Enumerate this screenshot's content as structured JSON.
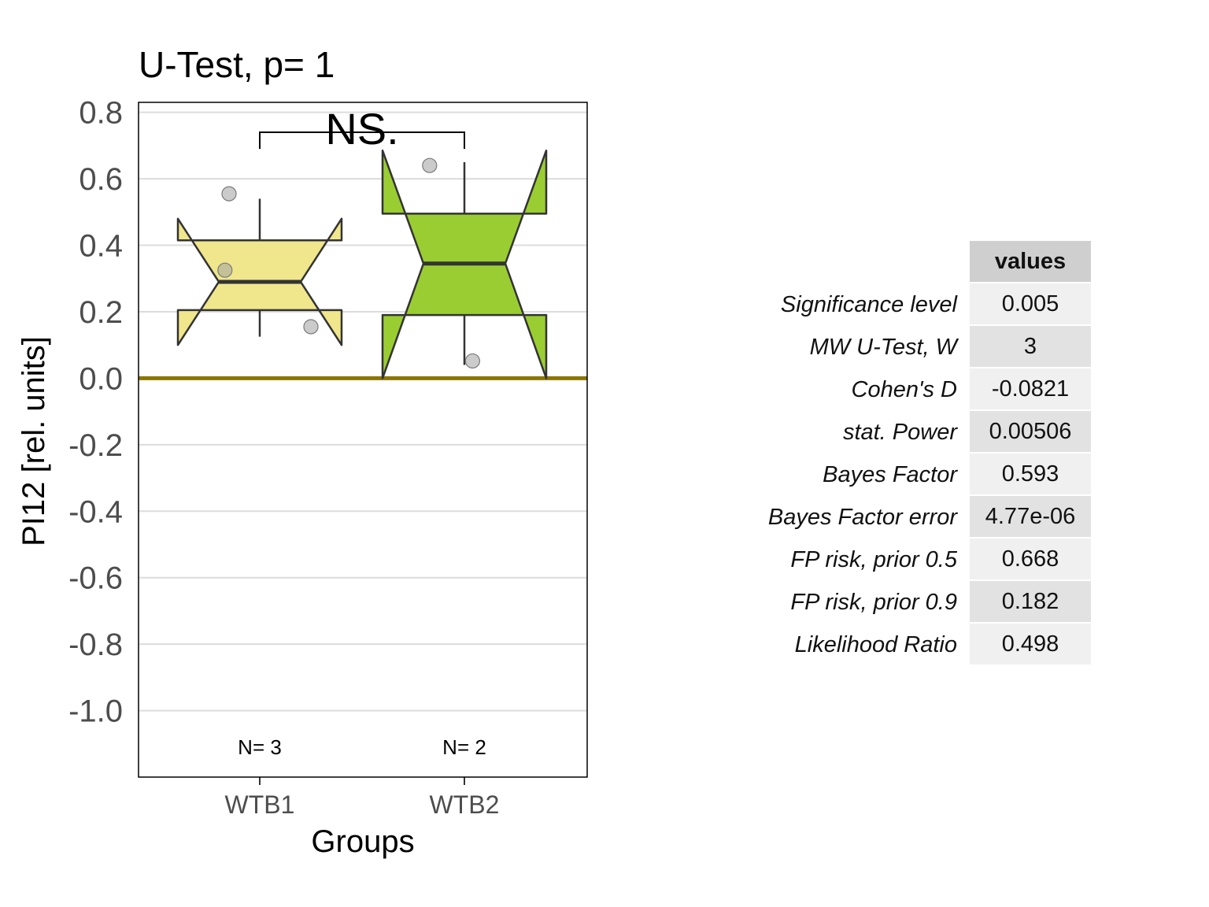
{
  "chart_data": {
    "type": "boxplot",
    "title": "U-Test, p= 1",
    "xlabel": "Groups",
    "ylabel": "PI12 [rel. units]",
    "ylim": [
      -1.2,
      0.83
    ],
    "yticks": [
      0.8,
      0.6,
      0.4,
      0.2,
      0.0,
      -0.2,
      -0.4,
      -0.6,
      -0.8,
      -1.0
    ],
    "ytick_labels": [
      "0.8",
      "0.6",
      "0.4",
      "0.2",
      "0.0",
      "-0.2",
      "-0.4",
      "-0.6",
      "-0.8",
      "-1.0"
    ],
    "grid": true,
    "reference_line": {
      "y": 0.0,
      "color": "#8b7500"
    },
    "significance": {
      "label": "NS.",
      "from": "WTB1",
      "to": "WTB2",
      "y": 0.74,
      "tick_bottom": 0.69
    },
    "groups": [
      {
        "name": "WTB1",
        "n_label": "N= 3",
        "color": "#f0e68c",
        "q1": 0.205,
        "median": 0.29,
        "q3": 0.415,
        "notch_low": 0.1,
        "notch_high": 0.48,
        "whisker_low": 0.125,
        "whisker_high": 0.54,
        "points": [
          {
            "jitter": -0.15,
            "y": 0.555
          },
          {
            "jitter": -0.17,
            "y": 0.325
          },
          {
            "jitter": 0.25,
            "y": 0.155
          }
        ]
      },
      {
        "name": "WTB2",
        "n_label": "N= 2",
        "color": "#9acd32",
        "q1": 0.19,
        "median": 0.345,
        "q3": 0.495,
        "notch_low": 0.0,
        "notch_high": 0.685,
        "whisker_low": 0.04,
        "whisker_high": 0.65,
        "points": [
          {
            "jitter": -0.17,
            "y": 0.64
          },
          {
            "jitter": 0.04,
            "y": 0.052
          }
        ]
      }
    ]
  },
  "stats_table": {
    "header": "values",
    "rows": [
      {
        "label": "Significance level",
        "value": "0.005"
      },
      {
        "label": "MW U-Test, W",
        "value": "3"
      },
      {
        "label": "Cohen's D",
        "value": "-0.0821"
      },
      {
        "label": "stat. Power",
        "value": "0.00506"
      },
      {
        "label": "Bayes Factor",
        "value": "0.593"
      },
      {
        "label": "Bayes Factor error",
        "value": "4.77e-06"
      },
      {
        "label": "FP risk, prior  0.5",
        "value": "0.668"
      },
      {
        "label": "FP risk, prior  0.9",
        "value": "0.182"
      },
      {
        "label": "Likelihood Ratio",
        "value": "0.498"
      }
    ]
  }
}
